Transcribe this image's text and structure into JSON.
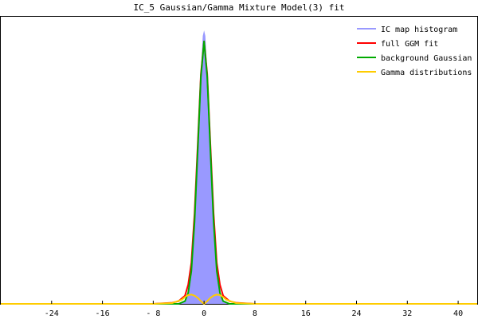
{
  "chart_data": {
    "type": "line",
    "title": "IC_5 Gaussian/Gamma Mixture Model(3) fit",
    "xlim": [
      -32,
      43
    ],
    "ylim": [
      0,
      1.05
    ],
    "x_ticks": [
      -24,
      -16,
      -8,
      0,
      8,
      16,
      24,
      32,
      40
    ],
    "x_tick_labels": [
      "-24",
      "-16",
      "- 8",
      "0",
      "8",
      "16",
      "24",
      "32",
      "40"
    ],
    "grid": false,
    "legend_position": "top-right",
    "series": [
      {
        "name": "IC map histogram",
        "kind": "histogram-area",
        "color": "#9999ff",
        "x": [
          -32,
          -4,
          -3,
          -2.5,
          -2,
          -1.5,
          -1,
          -0.5,
          -0.2,
          0,
          0.2,
          0.5,
          1,
          1.5,
          2,
          2.5,
          3,
          4,
          43
        ],
        "y": [
          0.0,
          0.0,
          0.01,
          0.03,
          0.1,
          0.28,
          0.55,
          0.85,
          0.98,
          1.0,
          0.98,
          0.85,
          0.55,
          0.28,
          0.1,
          0.03,
          0.01,
          0.0,
          0.0
        ]
      },
      {
        "name": "full GGM fit",
        "kind": "line",
        "color": "#ff0000",
        "x": [
          -32,
          -8,
          -5,
          -4,
          -3,
          -2.5,
          -2,
          -1.5,
          -1,
          -0.5,
          0,
          0.5,
          1,
          1.5,
          2,
          2.5,
          3,
          4,
          5,
          8,
          43
        ],
        "y": [
          0.0,
          0.0,
          0.004,
          0.01,
          0.03,
          0.07,
          0.15,
          0.33,
          0.58,
          0.84,
          0.96,
          0.84,
          0.58,
          0.33,
          0.15,
          0.07,
          0.03,
          0.01,
          0.004,
          0.0,
          0.0
        ]
      },
      {
        "name": "background Gaussian",
        "kind": "line",
        "color": "#00aa00",
        "x": [
          -32,
          -5,
          -4,
          -3,
          -2.5,
          -2,
          -1.5,
          -1,
          -0.5,
          0,
          0.5,
          1,
          1.5,
          2,
          2.5,
          3,
          4,
          5,
          43
        ],
        "y": [
          0.0,
          0.0,
          0.0,
          0.01,
          0.04,
          0.12,
          0.3,
          0.56,
          0.83,
          0.96,
          0.83,
          0.56,
          0.3,
          0.12,
          0.04,
          0.01,
          0.0,
          0.0,
          0.0
        ]
      },
      {
        "name": "Gamma distributions",
        "kind": "line",
        "color": "#ffcc00",
        "x": [
          -32,
          -8,
          -5,
          -3.5,
          -3,
          -2.5,
          -2,
          -1.5,
          -1,
          -0.5,
          0,
          0.5,
          1,
          1.5,
          2,
          2.5,
          3,
          3.5,
          5,
          8,
          43
        ],
        "y": [
          0.0,
          0.0,
          0.003,
          0.015,
          0.025,
          0.032,
          0.034,
          0.03,
          0.022,
          0.01,
          0.0,
          0.01,
          0.022,
          0.03,
          0.034,
          0.032,
          0.025,
          0.015,
          0.003,
          0.0,
          0.0
        ]
      }
    ]
  }
}
